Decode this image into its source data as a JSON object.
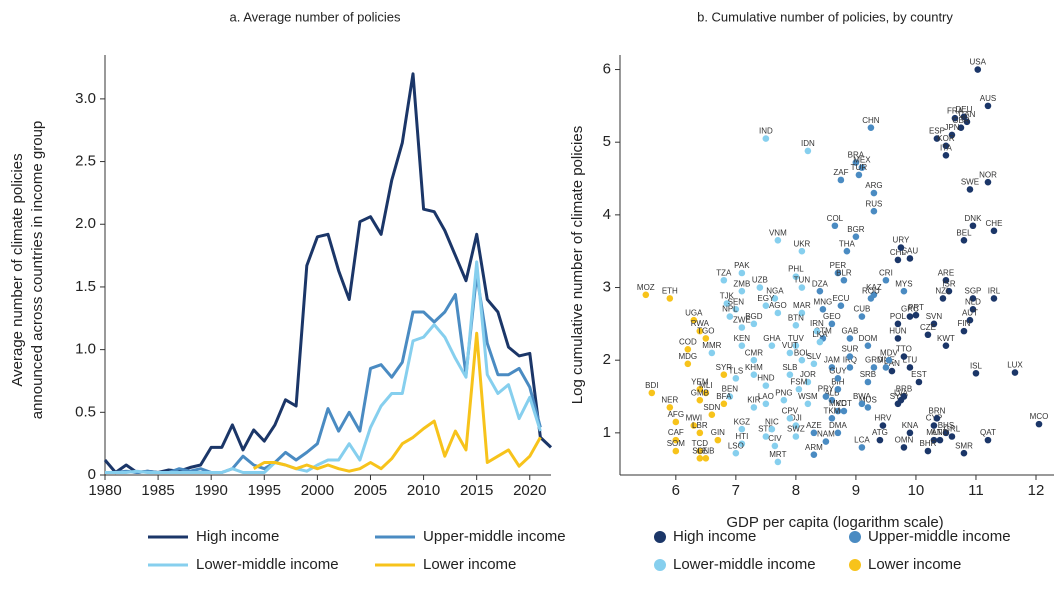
{
  "chart_data": [
    {
      "type": "line",
      "title": "a. Average number of policies",
      "ylabel": [
        "Average number of climate policies",
        "announced across countries in income group"
      ],
      "x": [
        1980,
        1981,
        1982,
        1983,
        1984,
        1985,
        1986,
        1987,
        1988,
        1989,
        1990,
        1991,
        1992,
        1993,
        1994,
        1995,
        1996,
        1997,
        1998,
        1999,
        2000,
        2001,
        2002,
        2003,
        2004,
        2005,
        2006,
        2007,
        2008,
        2009,
        2010,
        2011,
        2012,
        2013,
        2014,
        2015,
        2016,
        2017,
        2018,
        2019,
        2020,
        2021,
        2022
      ],
      "xlim": [
        1980,
        2022
      ],
      "xticks": [
        1980,
        1985,
        1990,
        1995,
        2000,
        2005,
        2010,
        2015,
        2020
      ],
      "ylim": [
        0,
        3.35
      ],
      "yticks": [
        0,
        0.5,
        {
          "value": 1,
          "label": "1.0"
        },
        1.5,
        {
          "value": 2,
          "label": "2.0"
        },
        2.5,
        {
          "value": 3,
          "label": "3.0"
        }
      ],
      "series": [
        {
          "name": "High income",
          "color": "#1b3668",
          "values": [
            0.12,
            0.02,
            0.08,
            0.02,
            0.03,
            0.02,
            0.04,
            0.03,
            0.06,
            0.08,
            0.22,
            0.22,
            0.4,
            0.2,
            0.36,
            0.27,
            0.4,
            0.6,
            0.55,
            1.67,
            1.9,
            1.92,
            1.63,
            1.4,
            2.02,
            2.06,
            1.92,
            2.35,
            2.65,
            3.2,
            2.12,
            2.1,
            1.95,
            1.75,
            1.55,
            1.92,
            1.4,
            1.3,
            1.02,
            0.95,
            0.97,
            0.3,
            0.22
          ]
        },
        {
          "name": "Upper-middle income",
          "color": "#4a8bc2",
          "values": [
            0.02,
            0.02,
            0.03,
            0.02,
            0.03,
            0.02,
            0.02,
            0.05,
            0.03,
            0.05,
            0.02,
            0.02,
            0.05,
            0.15,
            0.08,
            0.05,
            0.1,
            0.18,
            0.12,
            0.18,
            0.25,
            0.53,
            0.35,
            0.5,
            0.35,
            0.85,
            0.88,
            0.78,
            0.9,
            1.3,
            1.3,
            1.22,
            1.3,
            1.44,
            0.8,
            1.6,
            1.05,
            0.8,
            0.8,
            0.85,
            0.7,
            0.38,
            null
          ]
        },
        {
          "name": "Lower-middle income",
          "color": "#86cfee",
          "values": [
            0.02,
            0.02,
            0.02,
            0.03,
            0.02,
            0.02,
            0.02,
            0.02,
            0.02,
            0.02,
            0.02,
            0.02,
            0.05,
            0.02,
            0.02,
            0.02,
            0.1,
            0.08,
            0.05,
            0.03,
            0.08,
            0.12,
            0.12,
            0.25,
            0.12,
            0.38,
            0.55,
            0.65,
            0.65,
            1.07,
            1.1,
            1.2,
            1.1,
            0.93,
            0.78,
            1.7,
            0.8,
            0.65,
            0.72,
            0.45,
            0.62,
            0.35,
            null
          ]
        },
        {
          "name": "Lower income",
          "color": "#f7c31b",
          "values": [
            null,
            null,
            null,
            null,
            null,
            null,
            null,
            null,
            null,
            null,
            null,
            null,
            null,
            null,
            0.05,
            0.1,
            0.1,
            0.08,
            0.05,
            0.08,
            0.05,
            0.08,
            0.05,
            0.03,
            0.05,
            0.1,
            0.05,
            0.13,
            0.25,
            0.3,
            0.37,
            0.43,
            0.15,
            0.35,
            0.2,
            1.13,
            0.1,
            0.15,
            0.2,
            0.07,
            0.15,
            0.3,
            null
          ]
        }
      ]
    },
    {
      "type": "scatter",
      "title": "b. Cumulative number of policies, by country",
      "xlabel": "GDP per capita (logarithm scale)",
      "ylabel": "Log cumulative number of climate policies",
      "xlim": [
        5.07,
        12.3
      ],
      "xticks": [
        6,
        7,
        8,
        9,
        10,
        11,
        12
      ],
      "ylim": [
        0.42,
        6.2
      ],
      "yticks": [
        1,
        2,
        3,
        4,
        5,
        6
      ],
      "series": [
        {
          "name": "High income",
          "color": "#1b3668",
          "labels": [
            "USA",
            "AUS",
            "DEU",
            "FRA",
            "CAN",
            "GBR",
            "JPN",
            "ESP",
            "KOR",
            "ITA",
            "NOR",
            "SWE",
            "DNK",
            "CHE",
            "BEL",
            "SAU",
            "CHL",
            "URY",
            "ARE",
            "ISR",
            "SGP",
            "NZL",
            "IRL",
            "NLD",
            "AUT",
            "PRT",
            "SVN",
            "CZE",
            "FIN",
            "POL",
            "HUN",
            "KWT",
            "GRC",
            "CYP",
            "LUX",
            "ISL",
            "EST",
            "LTU",
            "LVA",
            "MLT",
            "QAT",
            "MCO",
            "BHS",
            "BRN",
            "PAN",
            "SYC",
            "HRV",
            "SMR",
            "BHR",
            "OMN",
            "AND",
            "KNA",
            "ATG",
            "BRB",
            "TTO",
            "GRL"
          ],
          "x": [
            11.03,
            11.2,
            10.8,
            10.65,
            10.85,
            10.75,
            10.6,
            10.35,
            10.5,
            10.5,
            11.2,
            10.9,
            10.95,
            11.3,
            10.8,
            9.9,
            9.7,
            9.75,
            10.5,
            10.55,
            10.95,
            10.45,
            11.3,
            10.95,
            10.9,
            10.0,
            10.3,
            10.2,
            10.8,
            9.7,
            9.7,
            10.5,
            9.9,
            10.3,
            11.65,
            11.0,
            10.05,
            9.9,
            9.75,
            10.3,
            11.2,
            12.05,
            10.5,
            10.35,
            9.6,
            9.7,
            9.45,
            10.8,
            10.2,
            9.8,
            10.4,
            9.9,
            9.4,
            9.8,
            9.8,
            10.6
          ],
          "values": [
            6.0,
            5.5,
            5.35,
            5.33,
            5.28,
            5.2,
            5.1,
            5.05,
            4.95,
            4.82,
            4.45,
            4.35,
            3.85,
            3.78,
            3.65,
            3.4,
            3.38,
            3.55,
            3.1,
            2.95,
            2.85,
            2.85,
            2.85,
            2.7,
            2.55,
            2.62,
            2.5,
            2.35,
            2.4,
            2.5,
            2.3,
            2.2,
            2.6,
            1.1,
            1.83,
            1.82,
            1.7,
            1.9,
            1.45,
            0.9,
            0.9,
            1.12,
            1.0,
            1.2,
            1.85,
            1.4,
            1.1,
            0.72,
            0.75,
            0.8,
            0.9,
            1.0,
            0.9,
            1.5,
            2.05,
            0.95
          ]
        },
        {
          "name": "Upper-middle income",
          "color": "#4a8bc2",
          "labels": [
            "CHN",
            "BRA",
            "MEX",
            "TUR",
            "ZAF",
            "ARG",
            "RUS",
            "COL",
            "BGR",
            "THA",
            "PER",
            "BLR",
            "MYS",
            "CRI",
            "KAZ",
            "ECU",
            "DZA",
            "MNG",
            "GEO",
            "DOM",
            "GTM",
            "SRB",
            "ALB",
            "BIH",
            "MKD",
            "IRQ",
            "JAM",
            "MUS",
            "GAB",
            "ARM",
            "AZE",
            "NAM",
            "BWA",
            "TKM",
            "LCA",
            "GRD",
            "DMA",
            "SUR",
            "GUY",
            "PRY",
            "MNE",
            "ROU",
            "CUB",
            "VCT",
            "MDV"
          ],
          "x": [
            9.25,
            9.0,
            9.1,
            9.05,
            8.75,
            9.3,
            9.3,
            8.65,
            9.0,
            8.85,
            8.7,
            8.8,
            9.8,
            9.5,
            9.3,
            8.75,
            8.4,
            8.45,
            8.6,
            9.2,
            8.45,
            9.2,
            8.6,
            8.7,
            8.7,
            8.9,
            8.6,
            9.2,
            8.9,
            8.3,
            8.3,
            8.5,
            9.1,
            8.6,
            9.1,
            9.3,
            8.7,
            8.9,
            8.7,
            8.5,
            9.5,
            9.25,
            9.1,
            8.8,
            9.55
          ],
          "values": [
            5.2,
            4.72,
            4.65,
            4.55,
            4.48,
            4.3,
            4.05,
            3.85,
            3.7,
            3.5,
            3.2,
            3.1,
            2.95,
            3.1,
            2.9,
            2.75,
            2.95,
            2.7,
            2.5,
            2.2,
            2.3,
            1.7,
            1.45,
            1.6,
            1.3,
            1.9,
            1.9,
            1.35,
            2.3,
            0.7,
            1.0,
            0.88,
            1.4,
            1.2,
            0.8,
            1.9,
            1.0,
            2.05,
            1.75,
            1.5,
            1.9,
            2.85,
            2.6,
            1.3,
            2.0
          ]
        },
        {
          "name": "Lower-middle income",
          "color": "#86cfee",
          "labels": [
            "IND",
            "IDN",
            "VNM",
            "UKR",
            "PAK",
            "PHL",
            "UZB",
            "ZMB",
            "TUN",
            "NGA",
            "EGY",
            "TJK",
            "SEN",
            "AGO",
            "MAR",
            "NPL",
            "BGD",
            "BTN",
            "IRN",
            "ZWE",
            "GHA",
            "KEN",
            "LKA",
            "TUV",
            "VUT",
            "CMR",
            "BOL",
            "SLV",
            "KHM",
            "SLB",
            "HND",
            "JOR",
            "FSM",
            "WSM",
            "PNG",
            "LAO",
            "KIR",
            "DJI",
            "CPV",
            "SWZ",
            "STP",
            "HTI",
            "CIV",
            "NIC",
            "KGZ",
            "MRT",
            "LSO",
            "MMR",
            "TZA",
            "BEN",
            "TLS"
          ],
          "x": [
            7.5,
            8.2,
            7.7,
            8.1,
            7.1,
            8.0,
            7.4,
            7.1,
            8.1,
            7.65,
            7.5,
            6.85,
            7.0,
            7.7,
            8.1,
            6.9,
            7.3,
            8.0,
            8.35,
            7.1,
            7.6,
            7.1,
            8.4,
            8.0,
            7.9,
            7.3,
            8.1,
            8.3,
            7.3,
            7.9,
            7.5,
            8.2,
            8.05,
            8.2,
            7.8,
            7.5,
            7.3,
            8.0,
            7.9,
            8.0,
            7.5,
            7.1,
            7.65,
            7.6,
            7.1,
            7.7,
            7.0,
            6.6,
            6.8,
            6.9,
            7.0
          ],
          "values": [
            5.05,
            4.88,
            3.65,
            3.5,
            3.2,
            3.15,
            3.0,
            2.95,
            3.0,
            2.85,
            2.75,
            2.78,
            2.7,
            2.65,
            2.65,
            2.6,
            2.5,
            2.48,
            2.4,
            2.45,
            2.2,
            2.2,
            2.25,
            2.2,
            2.1,
            2.0,
            2.0,
            1.95,
            1.8,
            1.8,
            1.65,
            1.7,
            1.6,
            1.4,
            1.45,
            1.4,
            1.35,
            1.1,
            1.2,
            0.95,
            0.95,
            0.85,
            0.82,
            1.05,
            1.05,
            0.6,
            0.72,
            2.1,
            3.1,
            1.5,
            1.75
          ]
        },
        {
          "name": "Lower income",
          "color": "#f7c31b",
          "labels": [
            "ETH",
            "MOZ",
            "UGA",
            "RWA",
            "TGO",
            "COD",
            "MDG",
            "SYR",
            "YEM",
            "MLI",
            "GMB",
            "BDI",
            "NER",
            "SDN",
            "BFA",
            "AFG",
            "MWI",
            "LBR",
            "CAF",
            "GIN",
            "TCD",
            "SOM",
            "SLE",
            "GNB"
          ],
          "x": [
            5.9,
            5.5,
            6.3,
            6.4,
            6.5,
            6.2,
            6.2,
            6.8,
            6.4,
            6.5,
            6.4,
            5.6,
            5.9,
            6.6,
            6.8,
            6.0,
            6.3,
            6.4,
            6.0,
            6.7,
            6.4,
            6.0,
            6.4,
            6.5
          ],
          "values": [
            2.85,
            2.9,
            2.55,
            2.4,
            2.3,
            2.15,
            1.95,
            1.8,
            1.6,
            1.55,
            1.45,
            1.55,
            1.35,
            1.25,
            1.4,
            1.15,
            1.1,
            1.0,
            0.9,
            0.9,
            0.75,
            0.75,
            0.65,
            0.65
          ]
        }
      ]
    }
  ]
}
